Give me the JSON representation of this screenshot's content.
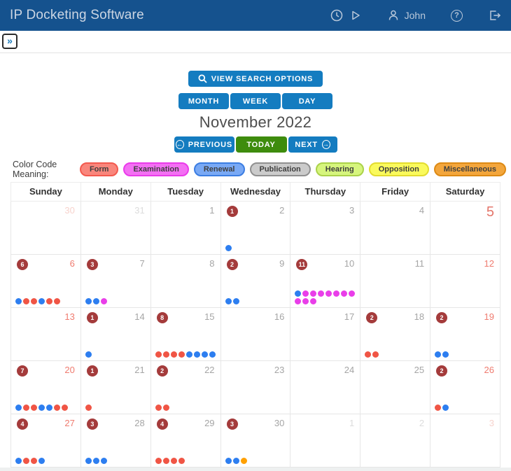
{
  "header": {
    "title": "IP Docketing Software",
    "user_name": "John"
  },
  "subbar": {
    "sidebar_toggle": "»"
  },
  "toolbar": {
    "search_button": "VIEW SEARCH OPTIONS",
    "view_buttons": {
      "month": "MONTH",
      "week": "WEEK",
      "day": "DAY"
    },
    "month_title": "November 2022",
    "previous_label": "PREVIOUS",
    "today_label": "TODAY",
    "next_label": "NEXT",
    "previous_arrow": "←",
    "next_arrow": "→"
  },
  "legend": {
    "label": "Color Code Meaning:",
    "items": [
      {
        "label": "Form",
        "bg": "#f9867c",
        "border": "#f3594e"
      },
      {
        "label": "Examination",
        "bg": "#f370f3",
        "border": "#ea3bea"
      },
      {
        "label": "Renewal",
        "bg": "#79a9f5",
        "border": "#3b7de2"
      },
      {
        "label": "Publication",
        "bg": "#cbcbcb",
        "border": "#909090"
      },
      {
        "label": "Hearing",
        "bg": "#d6f57d",
        "border": "#abd24a"
      },
      {
        "label": "Opposition",
        "bg": "#fafa5c",
        "border": "#e3dc2f"
      },
      {
        "label": "Miscellaneous",
        "bg": "#f3a63c",
        "border": "#dd8a14"
      }
    ]
  },
  "colors": {
    "header_bg": "#15528e",
    "button_blue": "#147cc0",
    "today_green": "#3e8c0d",
    "badge_red": "#a43b3b",
    "today_cell_bg": "#e9f6e3",
    "dots": {
      "blue": "#2d7ef0",
      "red": "#f05545",
      "magenta": "#e93ee9",
      "orange": "#ffa000"
    }
  },
  "calendar": {
    "weekdays": [
      "Sunday",
      "Monday",
      "Tuesday",
      "Wednesday",
      "Thursday",
      "Friday",
      "Saturday"
    ],
    "weeks": [
      [
        {
          "day": "30",
          "other": true,
          "weekend": true
        },
        {
          "day": "31",
          "other": true
        },
        {
          "day": "1"
        },
        {
          "day": "2",
          "badge": "1",
          "dots": [
            "blue"
          ]
        },
        {
          "day": "3"
        },
        {
          "day": "4"
        },
        {
          "day": "5",
          "weekend": true,
          "today": true
        }
      ],
      [
        {
          "day": "6",
          "weekend": true,
          "badge": "6",
          "dots": [
            "blue",
            "red",
            "red",
            "blue",
            "red",
            "red"
          ]
        },
        {
          "day": "7",
          "badge": "3",
          "dots": [
            "blue",
            "blue",
            "magenta"
          ]
        },
        {
          "day": "8"
        },
        {
          "day": "9",
          "badge": "2",
          "dots": [
            "blue",
            "blue"
          ]
        },
        {
          "day": "10",
          "badge": "11",
          "dots": [
            "blue",
            "magenta",
            "magenta",
            "magenta",
            "magenta",
            "magenta",
            "magenta",
            "magenta",
            "magenta",
            "magenta",
            "magenta"
          ]
        },
        {
          "day": "11"
        },
        {
          "day": "12",
          "weekend": true
        }
      ],
      [
        {
          "day": "13",
          "weekend": true
        },
        {
          "day": "14",
          "badge": "1",
          "dots": [
            "blue"
          ]
        },
        {
          "day": "15",
          "badge": "8",
          "dots": [
            "red",
            "red",
            "red",
            "red",
            "blue",
            "blue",
            "blue",
            "blue"
          ]
        },
        {
          "day": "16"
        },
        {
          "day": "17"
        },
        {
          "day": "18",
          "badge": "2",
          "dots": [
            "red",
            "red"
          ]
        },
        {
          "day": "19",
          "weekend": true,
          "badge": "2",
          "dots": [
            "blue",
            "blue"
          ]
        }
      ],
      [
        {
          "day": "20",
          "weekend": true,
          "badge": "7",
          "dots": [
            "blue",
            "red",
            "red",
            "blue",
            "blue",
            "red",
            "red"
          ]
        },
        {
          "day": "21",
          "badge": "1",
          "dots": [
            "red"
          ]
        },
        {
          "day": "22",
          "badge": "2",
          "dots": [
            "red",
            "red"
          ]
        },
        {
          "day": "23"
        },
        {
          "day": "24"
        },
        {
          "day": "25"
        },
        {
          "day": "26",
          "weekend": true,
          "badge": "2",
          "dots": [
            "red",
            "blue"
          ]
        }
      ],
      [
        {
          "day": "27",
          "weekend": true,
          "badge": "4",
          "dots": [
            "blue",
            "red",
            "red",
            "blue"
          ]
        },
        {
          "day": "28",
          "badge": "3",
          "dots": [
            "blue",
            "blue",
            "blue"
          ]
        },
        {
          "day": "29",
          "badge": "4",
          "dots": [
            "red",
            "red",
            "red",
            "red"
          ]
        },
        {
          "day": "30",
          "badge": "3",
          "dots": [
            "blue",
            "blue",
            "orange"
          ]
        },
        {
          "day": "1",
          "other": true
        },
        {
          "day": "2",
          "other": true
        },
        {
          "day": "3",
          "other": true,
          "weekend": true
        }
      ]
    ]
  }
}
